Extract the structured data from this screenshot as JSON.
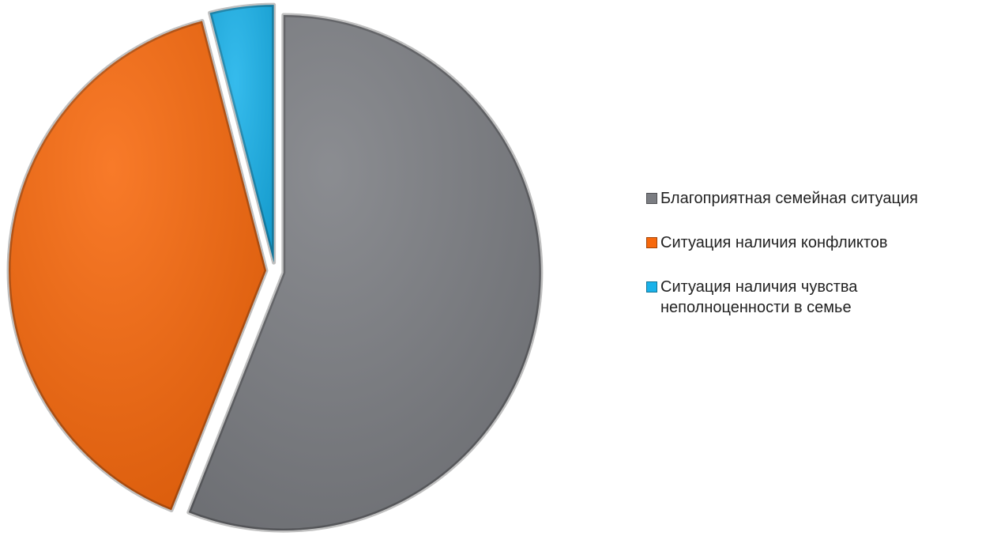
{
  "chart_data": {
    "type": "pie",
    "categories": [
      "Благоприятная семейная ситуация",
      "Ситуация наличия конфликтов",
      "Ситуация наличия чувства неполноценности в семье"
    ],
    "values": [
      56,
      40,
      4
    ],
    "colors": [
      "#7b7d82",
      "#f7680c",
      "#1ab2ea"
    ],
    "legend": "right"
  }
}
